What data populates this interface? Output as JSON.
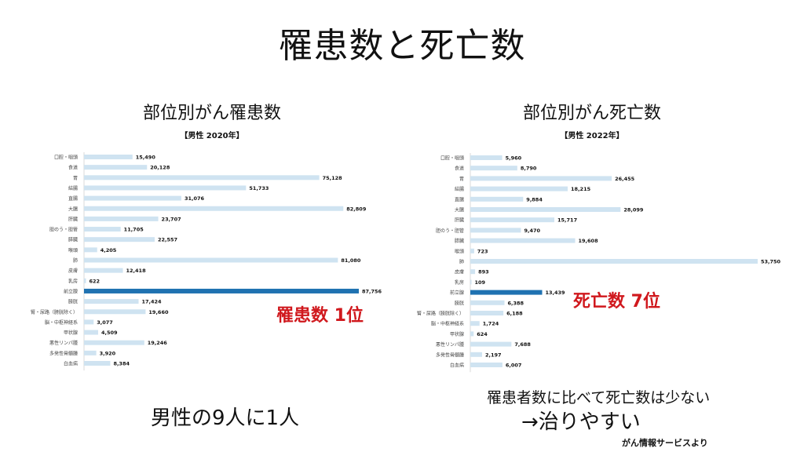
{
  "title": "罹患数と死亡数",
  "colors": {
    "bar": "#cfe3f1",
    "highlight": "#1f72b1",
    "note": "#d0181d"
  },
  "footer": {
    "left": "男性の9人に1人",
    "right_line1": "罹患者数に比べて死亡数は少ない",
    "right_line2": "→治りやすい",
    "source": "がん情報サービスより"
  },
  "chart_data": [
    {
      "type": "bar",
      "orientation": "horizontal",
      "title": "部位別がん罹患数",
      "subtitle": "【男性 2020年】",
      "categories": [
        "口腔・咽頭",
        "食道",
        "胃",
        "結腸",
        "直腸",
        "大腸",
        "肝臓",
        "胆のう・胆管",
        "膵臓",
        "喉頭",
        "肺",
        "皮膚",
        "乳房",
        "前立腺",
        "膀胱",
        "腎・尿路（膀胱除く）",
        "脳・中枢神経系",
        "甲状腺",
        "悪性リンパ腫",
        "多発性骨髄腫",
        "白血病"
      ],
      "values": [
        15490,
        20128,
        75128,
        51733,
        31076,
        82809,
        23707,
        11705,
        22557,
        4205,
        81080,
        12418,
        622,
        87756,
        17424,
        19660,
        3077,
        4509,
        19246,
        3920,
        8384
      ],
      "labels": [
        "15,490",
        "20,128",
        "75,128",
        "51,733",
        "31,076",
        "82,809",
        "23,707",
        "11,705",
        "22,557",
        "4,205",
        "81,080",
        "12,418",
        "622",
        "87,756",
        "17,424",
        "19,660",
        "3,077",
        "4,509",
        "19,246",
        "3,920",
        "8,384"
      ],
      "highlight_index": 13,
      "annotation": "罹患数 1位"
    },
    {
      "type": "bar",
      "orientation": "horizontal",
      "title": "部位別がん死亡数",
      "subtitle": "【男性 2022年】",
      "categories": [
        "口腔・咽頭",
        "食道",
        "胃",
        "結腸",
        "直腸",
        "大腸",
        "肝臓",
        "胆のう・胆管",
        "膵臓",
        "喉頭",
        "肺",
        "皮膚",
        "乳房",
        "前立腺",
        "膀胱",
        "腎・尿路（膀胱除く）",
        "脳・中枢神経系",
        "甲状腺",
        "悪性リンパ腫",
        "多発性骨髄腫",
        "白血病"
      ],
      "values": [
        5960,
        8790,
        26455,
        18215,
        9884,
        28099,
        15717,
        9470,
        19608,
        723,
        53750,
        893,
        109,
        13439,
        6388,
        6188,
        1724,
        624,
        7688,
        2197,
        6007
      ],
      "labels": [
        "5,960",
        "8,790",
        "26,455",
        "18,215",
        "9,884",
        "28,099",
        "15,717",
        "9,470",
        "19,608",
        "723",
        "53,750",
        "893",
        "109",
        "13,439",
        "6,388",
        "6,188",
        "1,724",
        "624",
        "7,688",
        "2,197",
        "6,007"
      ],
      "highlight_index": 13,
      "annotation": "死亡数 7位"
    }
  ]
}
